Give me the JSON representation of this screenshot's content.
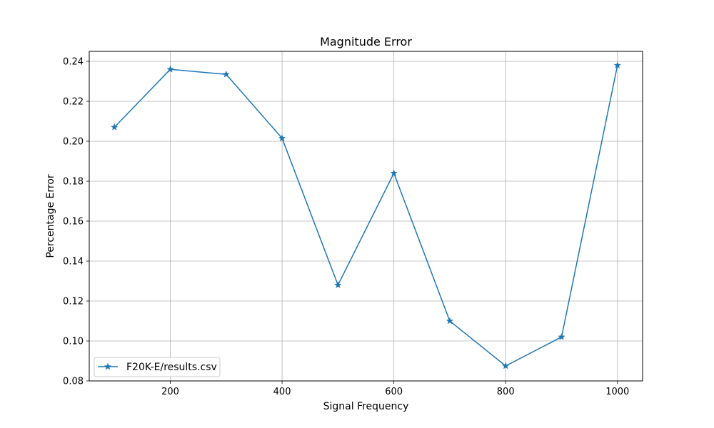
{
  "chart_data": {
    "type": "line",
    "title": "Magnitude Error",
    "xlabel": "Signal Frequency",
    "ylabel": "Percentage Error",
    "xlim": [
      55,
      1045
    ],
    "ylim": [
      0.08,
      0.245
    ],
    "xticks": [
      200,
      400,
      600,
      800,
      1000
    ],
    "yticks": [
      0.08,
      0.1,
      0.12,
      0.14,
      0.16,
      0.18,
      0.2,
      0.22,
      0.24
    ],
    "ytick_decimals": 2,
    "grid": true,
    "legend_position": "lower-left",
    "series": [
      {
        "name": "F20K-E/results.csv",
        "color": "#1f77b4",
        "marker": "star",
        "x": [
          100,
          200,
          300,
          400,
          500,
          600,
          700,
          800,
          900,
          1000
        ],
        "y": [
          0.207,
          0.236,
          0.2335,
          0.2015,
          0.128,
          0.184,
          0.11,
          0.0875,
          0.102,
          0.238
        ]
      }
    ]
  }
}
